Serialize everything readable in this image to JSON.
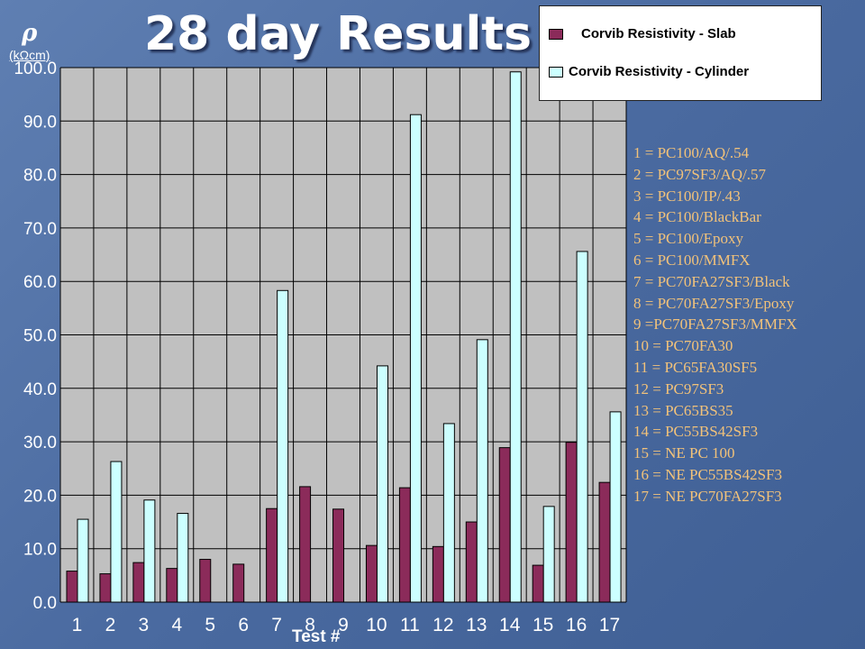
{
  "title": "28 day Results",
  "y_symbol": "ρ",
  "y_unit": "(kΩcm)",
  "colors": {
    "slab": "#8b2b5a",
    "cylinder": "#ccffff",
    "plot_bg": "#c0c0c0",
    "axis_text": "#ffffff",
    "key_text": "#f2c27a"
  },
  "legend_items": [
    {
      "label": "Corvib Resistivity - Slab"
    },
    {
      "label": "Corvib Resistivity - Cylinder"
    }
  ],
  "key": [
    "1 = PC100/AQ/.54",
    "2 = PC97SF3/AQ/.57",
    "3 = PC100/IP/.43",
    "4 = PC100/BlackBar",
    "5 = PC100/Epoxy",
    "6 = PC100/MMFX",
    "7 = PC70FA27SF3/Black",
    "8 = PC70FA27SF3/Epoxy",
    "9 =PC70FA27SF3/MMFX",
    "10 = PC70FA30",
    "11 = PC65FA30SF5",
    "12 = PC97SF3",
    "13 = PC65BS35",
    "14 = PC55BS42SF3",
    "15 = NE PC 100",
    "16 = NE    PC55BS42SF3",
    "17 = NE PC70FA27SF3"
  ],
  "chart_data": {
    "type": "bar",
    "title": "28 day Results",
    "xlabel": "Test #",
    "ylabel": "(kΩcm)",
    "categories": [
      "1",
      "2",
      "3",
      "4",
      "5",
      "6",
      "7",
      "8",
      "9",
      "10",
      "11",
      "12",
      "13",
      "14",
      "15",
      "16",
      "17"
    ],
    "series": [
      {
        "name": "Corvib Resistivity - Slab",
        "values": [
          5.8,
          5.3,
          7.4,
          6.3,
          8.0,
          7.1,
          17.5,
          21.6,
          17.4,
          10.6,
          21.4,
          10.4,
          15.0,
          28.9,
          6.9,
          29.9,
          22.4
        ]
      },
      {
        "name": "Corvib Resistivity - Cylinder",
        "values": [
          15.5,
          26.3,
          19.1,
          16.6,
          null,
          null,
          58.3,
          null,
          null,
          44.2,
          91.2,
          33.4,
          49.1,
          99.2,
          17.9,
          65.6,
          35.6
        ]
      }
    ],
    "ylim": [
      0,
      100
    ],
    "yticks": [
      "0.0",
      "10.0",
      "20.0",
      "30.0",
      "40.0",
      "50.0",
      "60.0",
      "70.0",
      "80.0",
      "90.0",
      "100.0"
    ],
    "grid": true,
    "legend": "top-right"
  }
}
